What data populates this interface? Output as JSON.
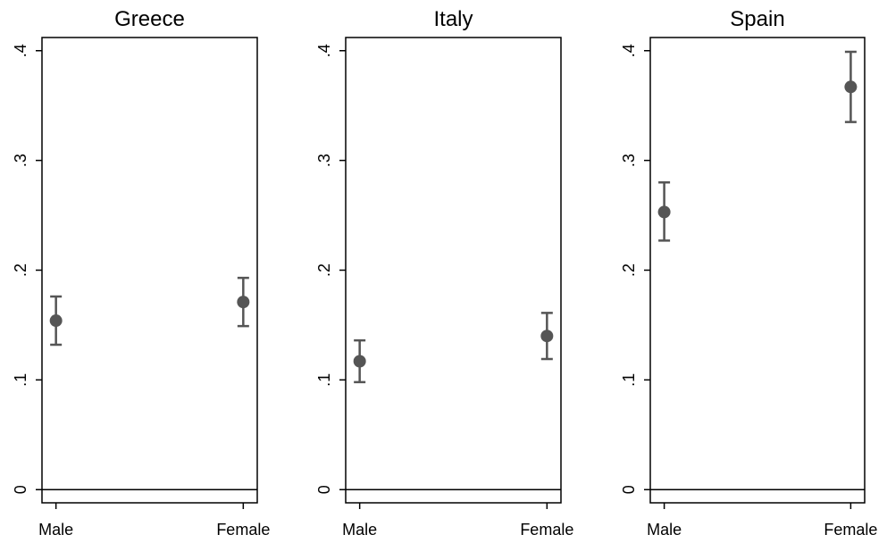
{
  "chart_data": [
    {
      "type": "scatter",
      "title": "Greece",
      "categories": [
        "Male",
        "Female"
      ],
      "values": [
        0.154,
        0.171
      ],
      "ci_low": [
        0.132,
        0.149
      ],
      "ci_high": [
        0.176,
        0.193
      ],
      "yticks": [
        0,
        0.1,
        0.2,
        0.3,
        0.4
      ],
      "ytick_labels": [
        "0",
        ".1",
        ".2",
        ".3",
        ".4"
      ],
      "ylim": [
        -0.012,
        0.412
      ],
      "grid": false,
      "zero_line": true
    },
    {
      "type": "scatter",
      "title": "Italy",
      "categories": [
        "Male",
        "Female"
      ],
      "values": [
        0.117,
        0.14
      ],
      "ci_low": [
        0.098,
        0.119
      ],
      "ci_high": [
        0.136,
        0.161
      ],
      "yticks": [
        0,
        0.1,
        0.2,
        0.3,
        0.4
      ],
      "ytick_labels": [
        "0",
        ".1",
        ".2",
        ".3",
        ".4"
      ],
      "ylim": [
        -0.012,
        0.412
      ],
      "grid": false,
      "zero_line": true
    },
    {
      "type": "scatter",
      "title": "Spain",
      "categories": [
        "Male",
        "Female"
      ],
      "values": [
        0.253,
        0.367
      ],
      "ci_low": [
        0.227,
        0.335
      ],
      "ci_high": [
        0.28,
        0.399
      ],
      "yticks": [
        0,
        0.1,
        0.2,
        0.3,
        0.4
      ],
      "ytick_labels": [
        "0",
        ".1",
        ".2",
        ".3",
        ".4"
      ],
      "ylim": [
        -0.012,
        0.412
      ],
      "grid": false,
      "zero_line": true
    }
  ]
}
